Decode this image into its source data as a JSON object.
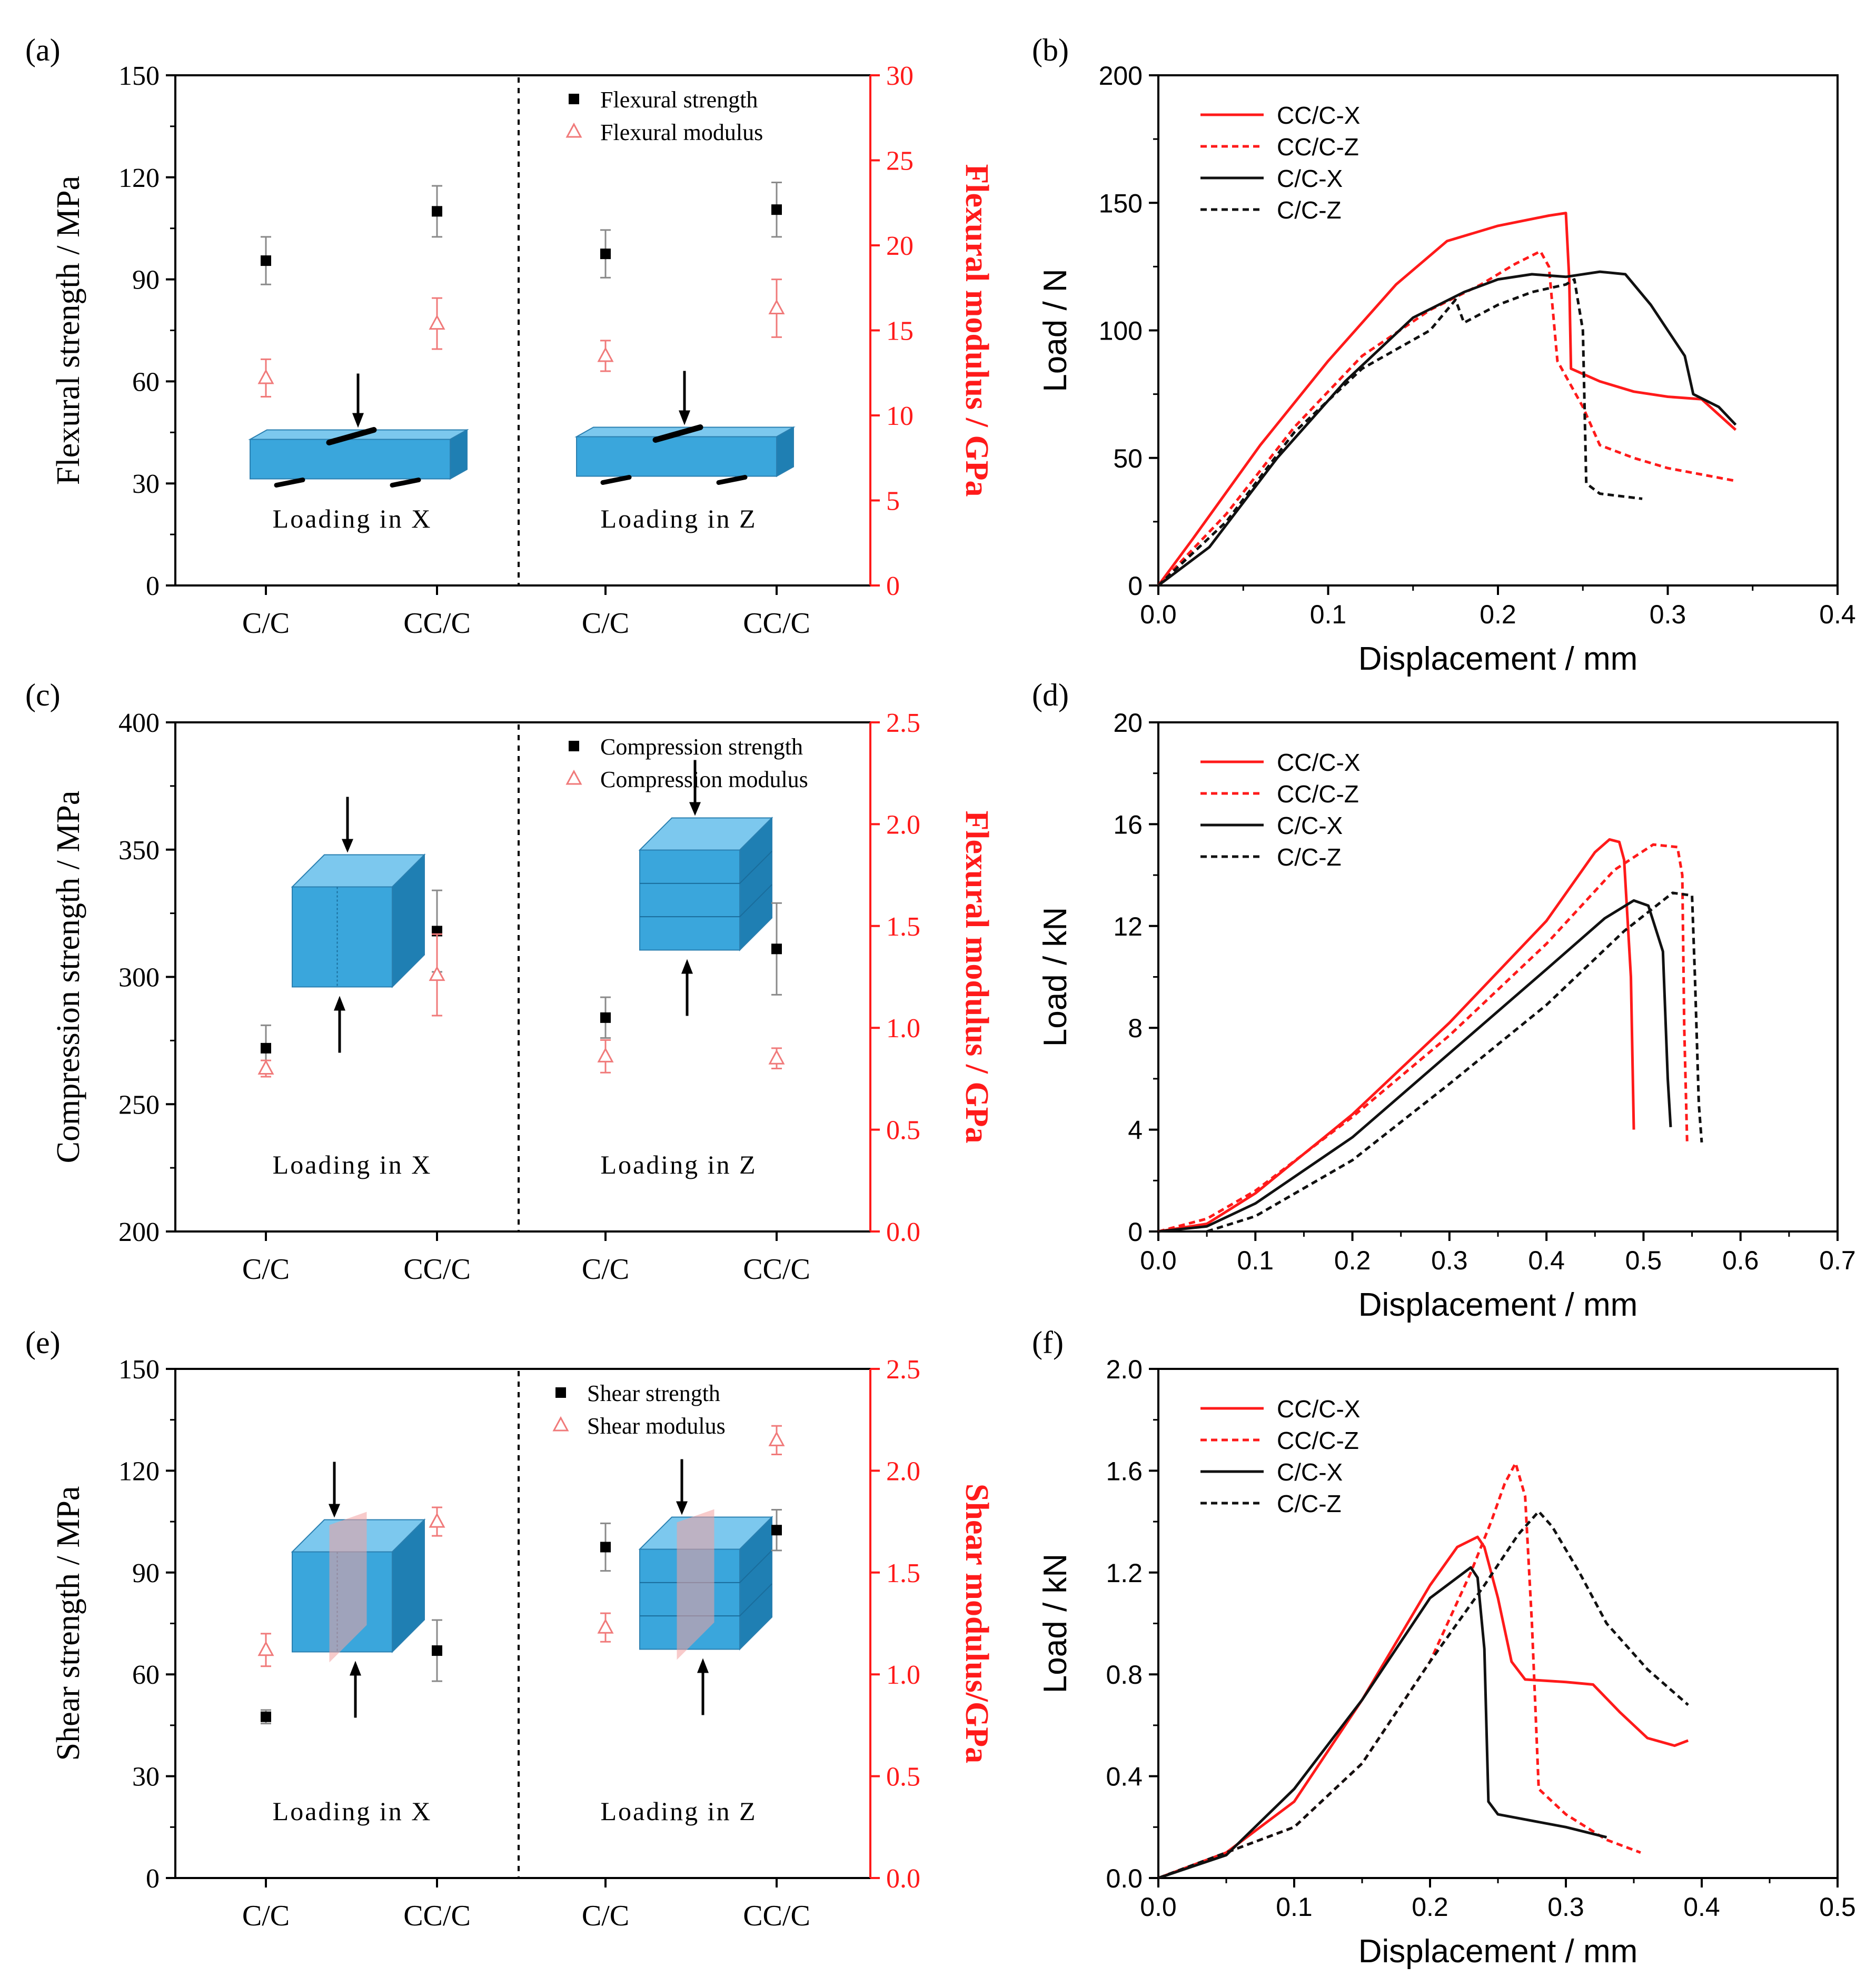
{
  "colors": {
    "red": "#ff1a1a",
    "black": "#111111",
    "pink": "#f07a7a",
    "grey": "#8a8a8a",
    "box_front": "#3aa6dc",
    "box_top": "#7cc8ee",
    "box_side": "#1f7fb3",
    "shear_plane": "#f3a0a0"
  },
  "chart_data": [
    {
      "panel": "(a)",
      "type": "scatter",
      "categories": [
        "C/C",
        "CC/C",
        "C/C",
        "CC/C"
      ],
      "ylabel": "Flexural strength / MPa",
      "y2label": "Flexural modulus / GPa",
      "ylim": [
        0,
        150
      ],
      "yticks": [
        0,
        30,
        60,
        90,
        120,
        150
      ],
      "y2lim": [
        0,
        30
      ],
      "y2ticks": [
        0,
        5,
        10,
        15,
        20,
        25,
        30
      ],
      "region_labels": [
        "Loading in X",
        "Loading in Z"
      ],
      "series": [
        {
          "name": "Flexural strength",
          "marker": "square",
          "axis": "left",
          "values": [
            95.5,
            110,
            97.5,
            110.5
          ],
          "err": [
            7,
            7.5,
            7,
            8
          ]
        },
        {
          "name": "Flexural modulus",
          "marker": "triangle",
          "axis": "right",
          "values": [
            12.2,
            15.4,
            13.5,
            16.3
          ],
          "err": [
            1.1,
            1.5,
            0.9,
            1.7
          ]
        }
      ],
      "inset": "beam"
    },
    {
      "panel": "(b)",
      "type": "line",
      "xlabel": "Displacement / mm",
      "ylabel": "Load / N",
      "xlim": [
        0,
        0.4
      ],
      "xticks": [
        "0.0",
        "0.1",
        "0.2",
        "0.3",
        "0.4"
      ],
      "ylim": [
        0,
        200
      ],
      "yticks": [
        "0",
        "50",
        "100",
        "150",
        "200"
      ],
      "series": [
        {
          "name": "CC/C-X",
          "color": "red",
          "dash": false,
          "points": [
            [
              0,
              0
            ],
            [
              0.02,
              18
            ],
            [
              0.06,
              55
            ],
            [
              0.1,
              88
            ],
            [
              0.14,
              118
            ],
            [
              0.17,
              135
            ],
            [
              0.2,
              141
            ],
            [
              0.23,
              145
            ],
            [
              0.24,
              146
            ],
            [
              0.242,
              120
            ],
            [
              0.243,
              85
            ],
            [
              0.26,
              80
            ],
            [
              0.28,
              76
            ],
            [
              0.3,
              74
            ],
            [
              0.32,
              73
            ],
            [
              0.34,
              61
            ]
          ]
        },
        {
          "name": "CC/C-Z",
          "color": "red",
          "dash": true,
          "points": [
            [
              0,
              0
            ],
            [
              0.04,
              28
            ],
            [
              0.08,
              62
            ],
            [
              0.12,
              90
            ],
            [
              0.16,
              108
            ],
            [
              0.19,
              118
            ],
            [
              0.21,
              126
            ],
            [
              0.225,
              131
            ],
            [
              0.23,
              125
            ],
            [
              0.235,
              88
            ],
            [
              0.25,
              70
            ],
            [
              0.26,
              55
            ],
            [
              0.28,
              50
            ],
            [
              0.3,
              46
            ],
            [
              0.34,
              41
            ]
          ]
        },
        {
          "name": "C/C-X",
          "color": "black",
          "dash": false,
          "points": [
            [
              0,
              0
            ],
            [
              0.03,
              15
            ],
            [
              0.07,
              50
            ],
            [
              0.11,
              80
            ],
            [
              0.15,
              105
            ],
            [
              0.18,
              115
            ],
            [
              0.2,
              120
            ],
            [
              0.22,
              122
            ],
            [
              0.24,
              121
            ],
            [
              0.26,
              123
            ],
            [
              0.275,
              122
            ],
            [
              0.29,
              110
            ],
            [
              0.3,
              100
            ],
            [
              0.31,
              90
            ],
            [
              0.315,
              75
            ],
            [
              0.33,
              70
            ],
            [
              0.34,
              63
            ]
          ]
        },
        {
          "name": "C/C-Z",
          "color": "black",
          "dash": true,
          "points": [
            [
              0,
              0
            ],
            [
              0.04,
              25
            ],
            [
              0.08,
              60
            ],
            [
              0.12,
              85
            ],
            [
              0.16,
              100
            ],
            [
              0.175,
              112
            ],
            [
              0.18,
              103
            ],
            [
              0.2,
              110
            ],
            [
              0.22,
              115
            ],
            [
              0.24,
              118
            ],
            [
              0.245,
              120
            ],
            [
              0.25,
              100
            ],
            [
              0.252,
              40
            ],
            [
              0.26,
              36
            ],
            [
              0.285,
              34
            ]
          ]
        }
      ]
    },
    {
      "panel": "(c)",
      "type": "scatter",
      "categories": [
        "C/C",
        "CC/C",
        "C/C",
        "CC/C"
      ],
      "ylabel": "Compression strength / MPa",
      "y2label": "Flexural modulus / GPa",
      "ylim": [
        200,
        400
      ],
      "yticks": [
        200,
        250,
        300,
        350,
        400
      ],
      "y2lim": [
        0,
        2.5
      ],
      "y2ticks": [
        "0.0",
        "0.5",
        "1.0",
        "1.5",
        "2.0",
        "2.5"
      ],
      "region_labels": [
        "Loading in X",
        "Loading in Z"
      ],
      "series": [
        {
          "name": "Compression strength",
          "marker": "square",
          "axis": "left",
          "values": [
            272,
            318,
            284,
            311
          ],
          "err": [
            9,
            16,
            8,
            18
          ]
        },
        {
          "name": "Compression modulus",
          "marker": "triangle",
          "axis": "right",
          "values": [
            0.8,
            1.26,
            0.86,
            0.85
          ],
          "err": [
            0.04,
            0.2,
            0.08,
            0.05
          ]
        }
      ],
      "inset": "cube"
    },
    {
      "panel": "(d)",
      "type": "line",
      "xlabel": "Displacement / mm",
      "ylabel": "Load / kN",
      "xlim": [
        0,
        0.7
      ],
      "xticks": [
        "0.0",
        "0.1",
        "0.2",
        "0.3",
        "0.4",
        "0.5",
        "0.6",
        "0.7"
      ],
      "ylim": [
        0,
        20
      ],
      "yticks": [
        "0",
        "4",
        "8",
        "12",
        "16",
        "20"
      ],
      "series": [
        {
          "name": "CC/C-X",
          "color": "red",
          "dash": false,
          "points": [
            [
              0,
              0
            ],
            [
              0.05,
              0.3
            ],
            [
              0.1,
              1.5
            ],
            [
              0.2,
              4.6
            ],
            [
              0.3,
              8.2
            ],
            [
              0.4,
              12.2
            ],
            [
              0.45,
              14.9
            ],
            [
              0.465,
              15.4
            ],
            [
              0.475,
              15.3
            ],
            [
              0.48,
              14.6
            ],
            [
              0.487,
              10
            ],
            [
              0.49,
              4
            ]
          ]
        },
        {
          "name": "CC/C-Z",
          "color": "red",
          "dash": true,
          "points": [
            [
              0,
              0
            ],
            [
              0.05,
              0.5
            ],
            [
              0.1,
              1.6
            ],
            [
              0.2,
              4.5
            ],
            [
              0.3,
              7.7
            ],
            [
              0.4,
              11.3
            ],
            [
              0.47,
              14.2
            ],
            [
              0.51,
              15.2
            ],
            [
              0.535,
              15.1
            ],
            [
              0.54,
              14
            ],
            [
              0.542,
              8
            ],
            [
              0.545,
              3.4
            ]
          ]
        },
        {
          "name": "C/C-X",
          "color": "black",
          "dash": false,
          "points": [
            [
              0,
              0
            ],
            [
              0.05,
              0.2
            ],
            [
              0.1,
              1.1
            ],
            [
              0.2,
              3.7
            ],
            [
              0.3,
              7
            ],
            [
              0.4,
              10.3
            ],
            [
              0.46,
              12.3
            ],
            [
              0.49,
              13
            ],
            [
              0.505,
              12.8
            ],
            [
              0.52,
              11
            ],
            [
              0.525,
              6
            ],
            [
              0.528,
              4.1
            ]
          ]
        },
        {
          "name": "C/C-Z",
          "color": "black",
          "dash": true,
          "points": [
            [
              0.05,
              0
            ],
            [
              0.1,
              0.6
            ],
            [
              0.2,
              2.8
            ],
            [
              0.3,
              5.8
            ],
            [
              0.4,
              8.9
            ],
            [
              0.48,
              11.8
            ],
            [
              0.53,
              13.3
            ],
            [
              0.55,
              13.2
            ],
            [
              0.553,
              10
            ],
            [
              0.557,
              5
            ],
            [
              0.56,
              3.5
            ]
          ]
        }
      ]
    },
    {
      "panel": "(e)",
      "type": "scatter",
      "categories": [
        "C/C",
        "CC/C",
        "C/C",
        "CC/C"
      ],
      "ylabel": "Shear strength / MPa",
      "y2label": "Shear modulus/GPa",
      "ylim": [
        0,
        150
      ],
      "yticks": [
        0,
        30,
        60,
        90,
        120,
        150
      ],
      "y2lim": [
        0,
        2.5
      ],
      "y2ticks": [
        "0.0",
        "0.5",
        "1.0",
        "1.5",
        "2.0",
        "2.5"
      ],
      "region_labels": [
        "Loading in X",
        "Loading in Z"
      ],
      "series": [
        {
          "name": "Shear strength",
          "marker": "square",
          "axis": "left",
          "values": [
            47.5,
            67,
            97.5,
            102.5
          ],
          "err": [
            2,
            9,
            7,
            6
          ]
        },
        {
          "name": "Shear modulus",
          "marker": "triangle",
          "axis": "right",
          "values": [
            1.12,
            1.75,
            1.23,
            2.15
          ],
          "err": [
            0.08,
            0.07,
            0.07,
            0.07
          ]
        }
      ],
      "inset": "cube"
    },
    {
      "panel": "(f)",
      "type": "line",
      "xlabel": "Displacement / mm",
      "ylabel": "Load / kN",
      "xlim": [
        0,
        0.5
      ],
      "xticks": [
        "0.0",
        "0.1",
        "0.2",
        "0.3",
        "0.4",
        "0.5"
      ],
      "ylim": [
        0,
        2.0
      ],
      "yticks": [
        "0.0",
        "0.4",
        "0.8",
        "1.2",
        "1.6",
        "2.0"
      ],
      "series": [
        {
          "name": "CC/C-X",
          "color": "red",
          "dash": false,
          "points": [
            [
              0,
              0
            ],
            [
              0.05,
              0.1
            ],
            [
              0.1,
              0.3
            ],
            [
              0.15,
              0.7
            ],
            [
              0.2,
              1.15
            ],
            [
              0.22,
              1.3
            ],
            [
              0.235,
              1.34
            ],
            [
              0.24,
              1.3
            ],
            [
              0.25,
              1.1
            ],
            [
              0.26,
              0.85
            ],
            [
              0.27,
              0.78
            ],
            [
              0.3,
              0.77
            ],
            [
              0.32,
              0.76
            ],
            [
              0.34,
              0.65
            ],
            [
              0.36,
              0.55
            ],
            [
              0.38,
              0.52
            ],
            [
              0.39,
              0.54
            ]
          ]
        },
        {
          "name": "CC/C-Z",
          "color": "red",
          "dash": true,
          "points": [
            [
              0,
              0
            ],
            [
              0.1,
              0.2
            ],
            [
              0.15,
              0.45
            ],
            [
              0.2,
              0.85
            ],
            [
              0.23,
              1.2
            ],
            [
              0.245,
              1.4
            ],
            [
              0.255,
              1.55
            ],
            [
              0.263,
              1.63
            ],
            [
              0.27,
              1.5
            ],
            [
              0.275,
              1.0
            ],
            [
              0.28,
              0.35
            ],
            [
              0.3,
              0.25
            ],
            [
              0.33,
              0.15
            ],
            [
              0.355,
              0.1
            ]
          ]
        },
        {
          "name": "C/C-X",
          "color": "black",
          "dash": false,
          "points": [
            [
              0,
              0
            ],
            [
              0.05,
              0.09
            ],
            [
              0.1,
              0.35
            ],
            [
              0.15,
              0.7
            ],
            [
              0.2,
              1.1
            ],
            [
              0.22,
              1.18
            ],
            [
              0.23,
              1.22
            ],
            [
              0.235,
              1.18
            ],
            [
              0.24,
              0.9
            ],
            [
              0.243,
              0.3
            ],
            [
              0.25,
              0.25
            ],
            [
              0.3,
              0.2
            ],
            [
              0.33,
              0.16
            ]
          ]
        },
        {
          "name": "C/C-Z",
          "color": "black",
          "dash": true,
          "points": [
            [
              0,
              0
            ],
            [
              0.1,
              0.2
            ],
            [
              0.15,
              0.45
            ],
            [
              0.2,
              0.85
            ],
            [
              0.24,
              1.15
            ],
            [
              0.265,
              1.35
            ],
            [
              0.28,
              1.44
            ],
            [
              0.29,
              1.38
            ],
            [
              0.31,
              1.2
            ],
            [
              0.33,
              1.0
            ],
            [
              0.36,
              0.82
            ],
            [
              0.39,
              0.68
            ]
          ]
        }
      ]
    }
  ]
}
